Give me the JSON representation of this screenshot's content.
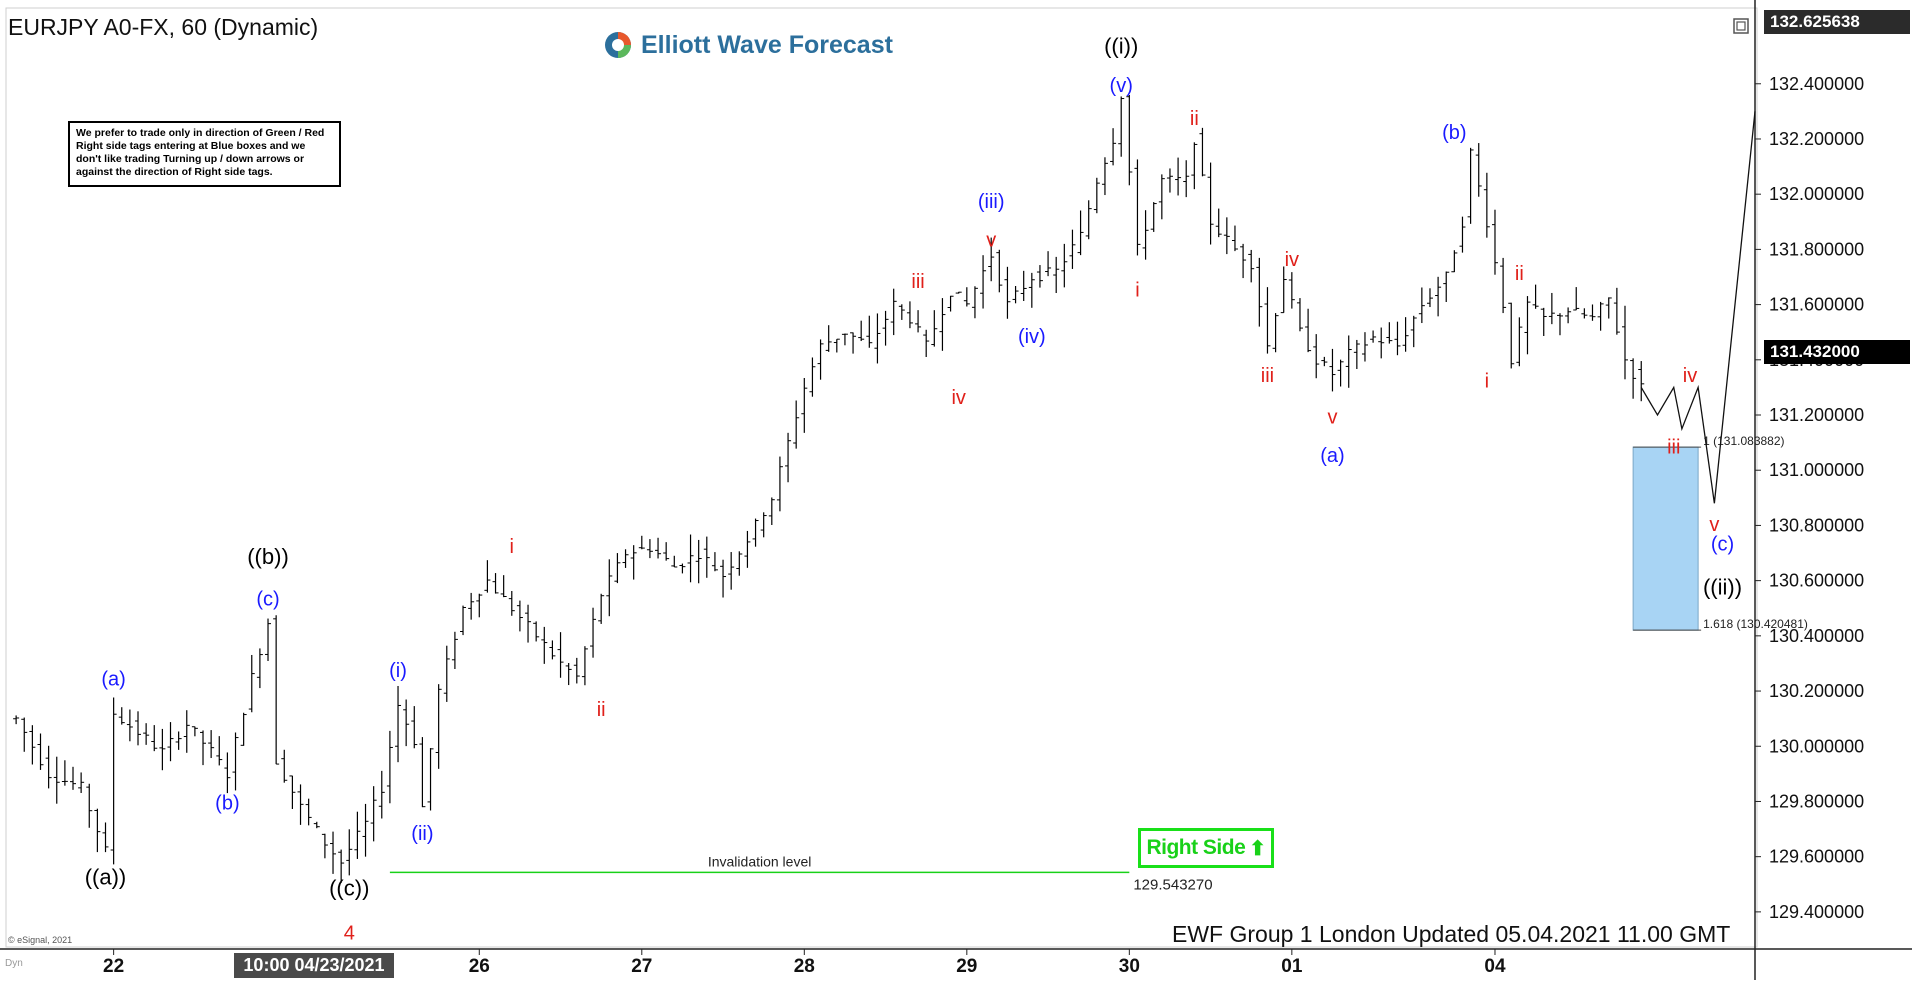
{
  "header": {
    "symbol_title": "EURJPY A0-FX, 60 (Dynamic)",
    "logo_text": "Elliott Wave Forecast"
  },
  "notice": {
    "text": "We prefer to trade only in direction of Green / Red Right side tags entering at Blue boxes and we don't like trading Turning up / down arrows or against the direction of Right side tags."
  },
  "right_side_tag": {
    "label": "Right Side",
    "icon": "up-arrow-icon",
    "color": "#19d119"
  },
  "footer": {
    "updated_text": "EWF Group 1 London Updated 05.04.2021 11.00 GMT",
    "copyright": "© eSignal, 2021",
    "dyn": "Dyn"
  },
  "cursor_time": "10:00 04/23/2021",
  "price_tags": {
    "top": "132.625638",
    "current": "131.432000"
  },
  "colors": {
    "bars": "#000000",
    "blue_label": "#1a1aff",
    "red_label": "#e0201a",
    "black_label": "#000000",
    "blue_box": "#a8d4f4",
    "invalidation_line": "#19d119"
  },
  "chart_data": {
    "type": "ohlc",
    "instrument": "EURJPY",
    "timeframe": "60",
    "ylim": [
      129.28,
      132.66
    ],
    "y_ticks": [
      "132.400000",
      "132.200000",
      "132.000000",
      "131.800000",
      "131.600000",
      "131.400000",
      "131.200000",
      "131.000000",
      "130.800000",
      "130.600000",
      "130.400000",
      "130.200000",
      "130.000000",
      "129.800000",
      "129.600000",
      "129.400000"
    ],
    "x_ticks": [
      {
        "label": "22",
        "t": 12
      },
      {
        "label": "26",
        "t": 57
      },
      {
        "label": "27",
        "t": 77
      },
      {
        "label": "28",
        "t": 97
      },
      {
        "label": "29",
        "t": 117
      },
      {
        "label": "30",
        "t": 137
      },
      {
        "label": "01",
        "t": 157
      },
      {
        "label": "04",
        "t": 182
      }
    ],
    "path_points": [
      [
        0,
        130.1
      ],
      [
        4,
        129.9
      ],
      [
        8,
        129.85
      ],
      [
        11,
        129.62
      ],
      [
        12,
        130.12
      ],
      [
        15,
        130.05
      ],
      [
        18,
        129.98
      ],
      [
        21,
        130.08
      ],
      [
        24,
        129.98
      ],
      [
        26,
        129.9
      ],
      [
        29,
        130.25
      ],
      [
        31,
        130.45
      ],
      [
        32,
        129.95
      ],
      [
        35,
        129.78
      ],
      [
        38,
        129.65
      ],
      [
        40,
        129.58
      ],
      [
        43,
        129.72
      ],
      [
        45,
        129.85
      ],
      [
        47,
        130.15
      ],
      [
        49,
        130.02
      ],
      [
        50,
        129.78
      ],
      [
        52,
        130.2
      ],
      [
        55,
        130.5
      ],
      [
        58,
        130.6
      ],
      [
        61,
        130.5
      ],
      [
        64,
        130.4
      ],
      [
        67,
        130.3
      ],
      [
        69,
        130.25
      ],
      [
        72,
        130.55
      ],
      [
        75,
        130.7
      ],
      [
        78,
        130.72
      ],
      [
        81,
        130.65
      ],
      [
        84,
        130.7
      ],
      [
        87,
        130.62
      ],
      [
        90,
        130.75
      ],
      [
        93,
        130.9
      ],
      [
        95,
        131.1
      ],
      [
        97,
        131.3
      ],
      [
        99,
        131.45
      ],
      [
        102,
        131.5
      ],
      [
        105,
        131.45
      ],
      [
        108,
        131.6
      ],
      [
        110,
        131.55
      ],
      [
        112,
        131.45
      ],
      [
        115,
        131.65
      ],
      [
        117,
        131.6
      ],
      [
        120,
        131.78
      ],
      [
        122,
        131.6
      ],
      [
        125,
        131.7
      ],
      [
        128,
        131.72
      ],
      [
        131,
        131.85
      ],
      [
        133,
        132.05
      ],
      [
        135,
        132.2
      ],
      [
        136,
        132.36
      ],
      [
        138,
        131.8
      ],
      [
        141,
        132.05
      ],
      [
        144,
        132.05
      ],
      [
        145,
        132.2
      ],
      [
        147,
        131.9
      ],
      [
        150,
        131.8
      ],
      [
        152,
        131.75
      ],
      [
        154,
        131.45
      ],
      [
        156,
        131.7
      ],
      [
        158,
        131.5
      ],
      [
        160,
        131.4
      ],
      [
        162,
        131.35
      ],
      [
        164,
        131.42
      ],
      [
        167,
        131.48
      ],
      [
        170,
        131.45
      ],
      [
        173,
        131.6
      ],
      [
        176,
        131.7
      ],
      [
        178,
        131.9
      ],
      [
        179,
        132.15
      ],
      [
        181,
        131.9
      ],
      [
        183,
        131.6
      ],
      [
        184,
        131.4
      ],
      [
        186,
        131.6
      ],
      [
        188,
        131.55
      ],
      [
        191,
        131.58
      ],
      [
        194,
        131.55
      ],
      [
        196,
        131.62
      ],
      [
        198,
        131.4
      ],
      [
        200,
        131.3
      ]
    ],
    "projection": [
      [
        200,
        131.3
      ],
      [
        202,
        131.2
      ],
      [
        204,
        131.3
      ],
      [
        205,
        131.15
      ],
      [
        207,
        131.3
      ],
      [
        209,
        130.88
      ],
      [
        214,
        132.3
      ]
    ],
    "x_max": 214,
    "invalidation": {
      "label": "Invalidation level",
      "value": "129.543270",
      "x_start": 46,
      "x_end": 137
    },
    "blue_box": {
      "x_start": 199,
      "x_end": 207,
      "top_value": 131.083882,
      "bottom_value": 130.420481,
      "top_label": "1 (131.083882)",
      "bottom_label": "1.618 (130.420481)"
    },
    "wave_labels": [
      {
        "text": "((a))",
        "t": 11,
        "v": 129.5,
        "color": "black"
      },
      {
        "text": "(a)",
        "t": 12,
        "v": 130.22,
        "color": "blue"
      },
      {
        "text": "(b)",
        "t": 26,
        "v": 129.77,
        "color": "blue"
      },
      {
        "text": "((b))",
        "t": 31,
        "v": 130.66,
        "color": "black"
      },
      {
        "text": "(c)",
        "t": 31,
        "v": 130.51,
        "color": "blue"
      },
      {
        "text": "((c))",
        "t": 41,
        "v": 129.46,
        "color": "black"
      },
      {
        "text": "4",
        "t": 41,
        "v": 129.3,
        "color": "red"
      },
      {
        "text": "(i)",
        "t": 47,
        "v": 130.25,
        "color": "blue"
      },
      {
        "text": "(ii)",
        "t": 50,
        "v": 129.66,
        "color": "blue"
      },
      {
        "text": "i",
        "t": 61,
        "v": 130.7,
        "color": "red"
      },
      {
        "text": "ii",
        "t": 72,
        "v": 130.11,
        "color": "red"
      },
      {
        "text": "iii",
        "t": 111,
        "v": 131.66,
        "color": "red"
      },
      {
        "text": "iv",
        "t": 116,
        "v": 131.24,
        "color": "red"
      },
      {
        "text": "(iii)",
        "t": 120,
        "v": 131.95,
        "color": "blue"
      },
      {
        "text": "v",
        "t": 120,
        "v": 131.81,
        "color": "red"
      },
      {
        "text": "(iv)",
        "t": 125,
        "v": 131.46,
        "color": "blue"
      },
      {
        "text": "((i))",
        "t": 136,
        "v": 132.51,
        "color": "black"
      },
      {
        "text": "(v)",
        "t": 136,
        "v": 132.37,
        "color": "blue"
      },
      {
        "text": "i",
        "t": 138,
        "v": 131.63,
        "color": "red"
      },
      {
        "text": "ii",
        "t": 145,
        "v": 132.25,
        "color": "red"
      },
      {
        "text": "iv",
        "t": 157,
        "v": 131.74,
        "color": "red"
      },
      {
        "text": "iii",
        "t": 154,
        "v": 131.32,
        "color": "red"
      },
      {
        "text": "v",
        "t": 162,
        "v": 131.17,
        "color": "red"
      },
      {
        "text": "(a)",
        "t": 162,
        "v": 131.03,
        "color": "blue"
      },
      {
        "text": "(b)",
        "t": 177,
        "v": 132.2,
        "color": "blue"
      },
      {
        "text": "ii",
        "t": 185,
        "v": 131.69,
        "color": "red"
      },
      {
        "text": "i",
        "t": 181,
        "v": 131.3,
        "color": "red"
      },
      {
        "text": "iv",
        "t": 206,
        "v": 131.32,
        "color": "red"
      },
      {
        "text": "iii",
        "t": 204,
        "v": 131.06,
        "color": "red"
      },
      {
        "text": "v",
        "t": 209,
        "v": 130.78,
        "color": "red"
      },
      {
        "text": "(c)",
        "t": 210,
        "v": 130.71,
        "color": "blue"
      },
      {
        "text": "((ii))",
        "t": 210,
        "v": 130.55,
        "color": "black"
      }
    ]
  }
}
